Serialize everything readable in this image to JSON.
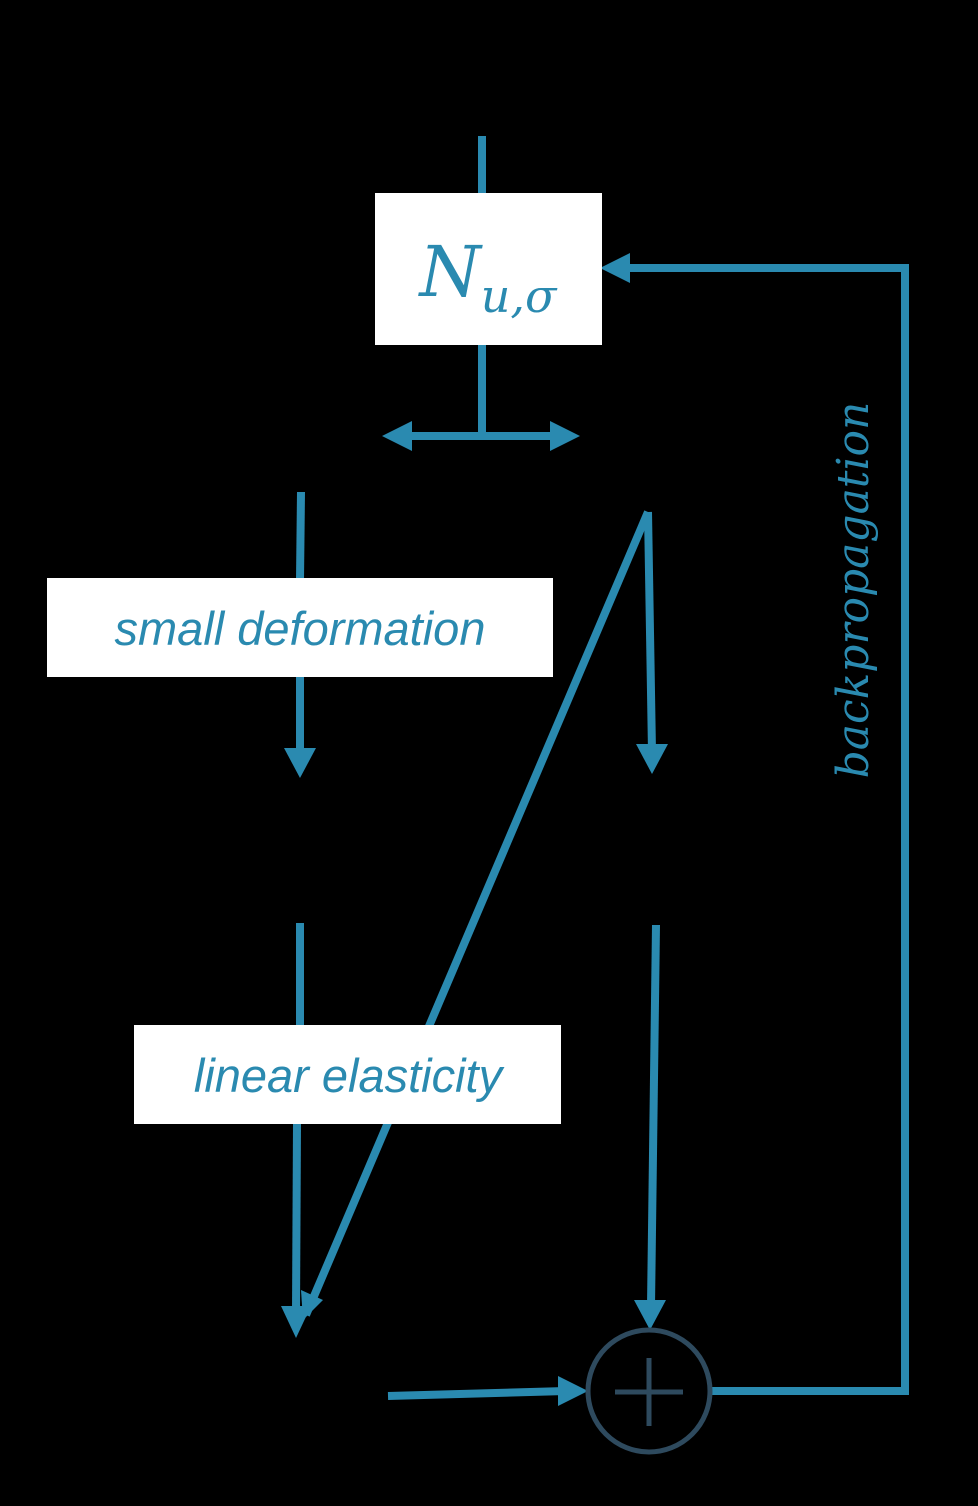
{
  "network": {
    "symbol": "N",
    "subscript": "u,σ"
  },
  "labels": {
    "small_deformation": "small deformation",
    "linear_elasticity": "linear elasticity",
    "backpropagation": "backpropagation"
  },
  "colors": {
    "background": "#000000",
    "accent": "#2A8AB0",
    "box_fill": "#FFFFFF",
    "sum_node": "#2E4A5E"
  },
  "icons": {
    "sum_node": "circled-plus-icon"
  }
}
